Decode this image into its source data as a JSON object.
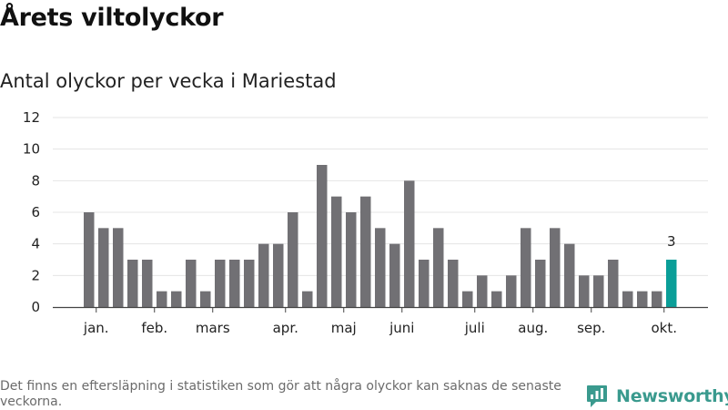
{
  "header": {
    "title": "Årets viltolyckor",
    "subtitle": "Antal olyckor per vecka i Mariestad"
  },
  "chart_data": {
    "type": "bar",
    "title": "Årets viltolyckor",
    "subtitle": "Antal olyckor per vecka i Mariestad",
    "xlabel": "",
    "ylabel": "",
    "ylim": [
      0,
      12
    ],
    "yticks": [
      0,
      2,
      4,
      6,
      8,
      10,
      12
    ],
    "grid": true,
    "values": [
      6,
      5,
      5,
      3,
      3,
      1,
      1,
      3,
      1,
      3,
      3,
      3,
      4,
      4,
      6,
      1,
      9,
      7,
      6,
      7,
      5,
      4,
      8,
      3,
      5,
      3,
      1,
      2,
      1,
      2,
      5,
      3,
      5,
      4,
      2,
      2,
      3,
      1,
      1,
      1,
      3
    ],
    "highlight": {
      "index": 40,
      "label": "3"
    },
    "month_labels": [
      {
        "label": "jan.",
        "week_index": 0.5
      },
      {
        "label": "feb.",
        "week_index": 4.5
      },
      {
        "label": "mars",
        "week_index": 8.5
      },
      {
        "label": "apr.",
        "week_index": 13.5
      },
      {
        "label": "maj",
        "week_index": 17.5
      },
      {
        "label": "juni",
        "week_index": 21.5
      },
      {
        "label": "juli",
        "week_index": 26.5
      },
      {
        "label": "aug.",
        "week_index": 30.5
      },
      {
        "label": "sep.",
        "week_index": 34.5
      },
      {
        "label": "okt.",
        "week_index": 39.5
      }
    ],
    "colors": {
      "bar": "#717074",
      "highlight": "#0a9e98",
      "grid": "#e4e4e4",
      "axis": "#444444"
    }
  },
  "footer": {
    "note": "Det finns en eftersläpning i statistiken som gör att några olyckor kan saknas de senaste veckorna.",
    "brand": "Newsworthy",
    "brand_color": "#3a9a8e"
  }
}
